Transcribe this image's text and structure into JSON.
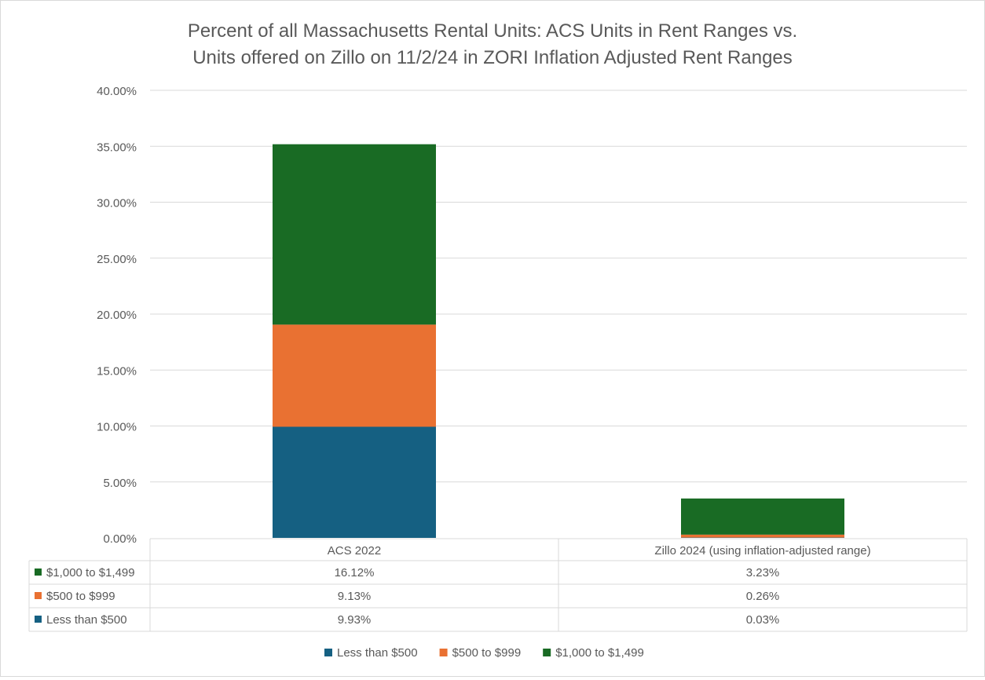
{
  "chart_data": {
    "type": "bar",
    "stacked": true,
    "title_lines": [
      "Percent of all Massachusetts Rental Units: ACS Units in Rent Ranges vs.",
      "Units offered on Zillo on 11/2/24  in ZORI Inflation Adjusted Rent Ranges"
    ],
    "categories": [
      "ACS 2022",
      "Zillo 2024 (using inflation-adjusted range)"
    ],
    "series": [
      {
        "name": "Less than $500",
        "color": "#156082",
        "values": [
          9.93,
          0.03
        ],
        "labels": [
          "9.93%",
          "0.03%"
        ]
      },
      {
        "name": "$500 to $999",
        "color": "#E97132",
        "values": [
          9.13,
          0.26
        ],
        "labels": [
          "9.13%",
          "0.26%"
        ]
      },
      {
        "name": "$1,000 to $1,499",
        "color": "#196B24",
        "values": [
          16.12,
          3.23
        ],
        "labels": [
          "16.12%",
          "3.23%"
        ]
      }
    ],
    "ylim": [
      0,
      40
    ],
    "yticks": [
      0,
      5,
      10,
      15,
      20,
      25,
      30,
      35,
      40
    ],
    "ytick_labels": [
      "0.00%",
      "5.00%",
      "10.00%",
      "15.00%",
      "20.00%",
      "25.00%",
      "30.00%",
      "35.00%",
      "40.00%"
    ],
    "grid": true,
    "data_table": true,
    "legend_position": "bottom"
  }
}
